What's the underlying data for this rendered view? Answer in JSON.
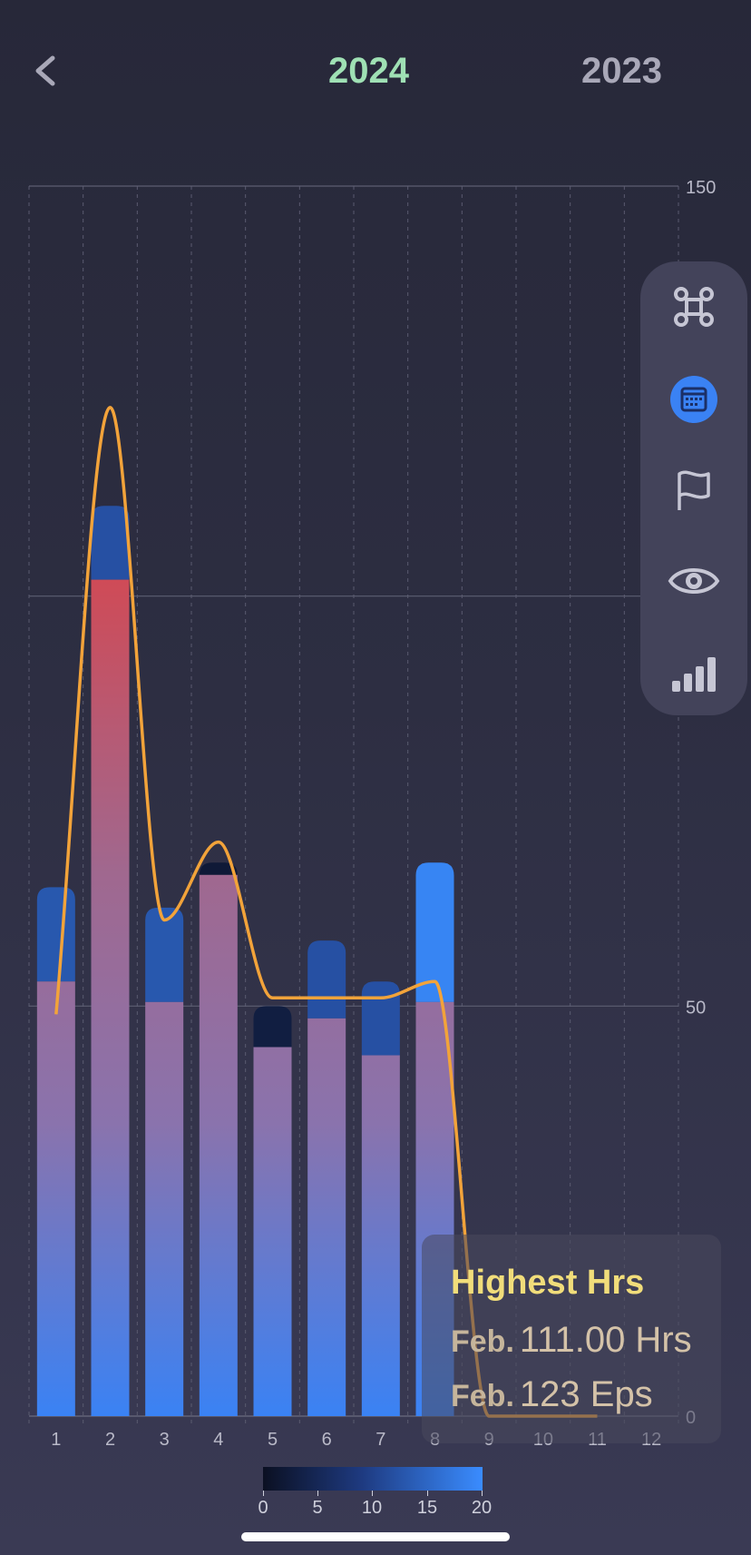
{
  "header": {
    "year_active": "2024",
    "year_other": "2023"
  },
  "colors": {
    "accent_green": "#9fe0b4",
    "line_orange": "#f2a33a",
    "bar_blue_bright": "#3a8cff",
    "bar_blue_dark": "#23519e",
    "bar_navy": "#12214a",
    "bar_red": "#c94c5a",
    "tooltip_title": "#f1dd7a"
  },
  "side_panel": {
    "items": [
      "command-icon",
      "calendar-icon",
      "flag-icon",
      "eye-icon",
      "signal-bars-icon"
    ],
    "active": "calendar-icon"
  },
  "tooltip": {
    "title": "Highest Hrs",
    "hours_month": "Feb.",
    "hours_value": "111.00 Hrs",
    "eps_month": "Feb.",
    "eps_value": "123 Eps"
  },
  "legend": {
    "labels": [
      "0",
      "5",
      "10",
      "15",
      "20"
    ]
  },
  "chart_data": {
    "type": "bar",
    "categories": [
      "1",
      "2",
      "3",
      "4",
      "5",
      "6",
      "7",
      "8",
      "9",
      "10",
      "11",
      "12"
    ],
    "ylim": [
      0,
      150
    ],
    "y_ticks": [
      "0",
      "50",
      "150"
    ],
    "grid": true,
    "series": [
      {
        "values": [
          53,
          102,
          50.5,
          66,
          45,
          48.5,
          44,
          50.5,
          0,
          0,
          0,
          0
        ]
      },
      {
        "values": [
          64.5,
          111,
          62,
          67.5,
          50,
          58,
          53,
          67.5,
          0,
          0,
          0,
          0
        ]
      },
      {
        "values": [
          49,
          123,
          60.5,
          70,
          51,
          51,
          51,
          53,
          0,
          0,
          0,
          0
        ]
      }
    ],
    "color_scale": {
      "min": 0,
      "max": 20
    },
    "top_color_level": [
      13,
      12,
      13,
      2,
      3,
      12,
      12,
      19,
      0,
      0,
      0,
      0
    ]
  }
}
